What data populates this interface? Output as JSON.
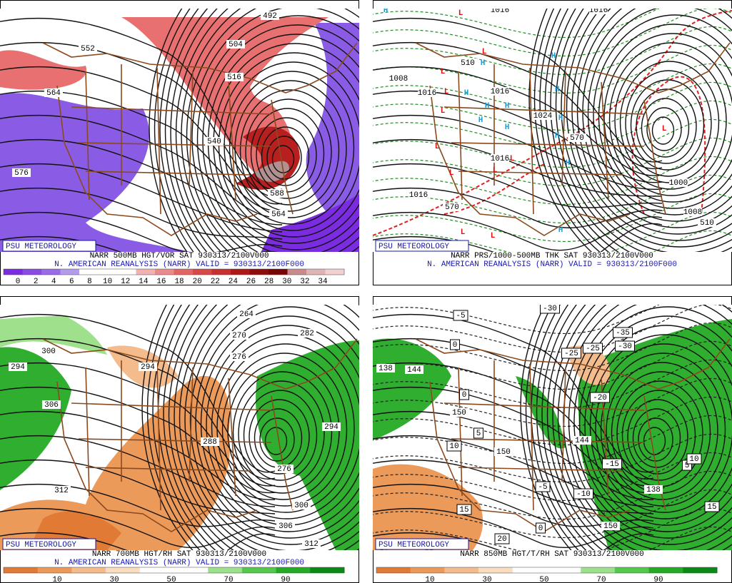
{
  "panels": [
    {
      "caption": [
        "NARR 500MB HGT/VOR SAT 930313/2100V000",
        "N. AMERICAN REANALYSIS (NARR) VALID = 930313/2100F000"
      ],
      "badge": "PSU METEOROLOGY",
      "colorbar": {
        "labels": [
          "0",
          "2",
          "4",
          "6",
          "8",
          "10",
          "12",
          "14",
          "16",
          "18",
          "20",
          "22",
          "24",
          "26",
          "28",
          "30",
          "32",
          "34"
        ],
        "colors": [
          "#7b2be0",
          "#8a4ae4",
          "#9a6ae8",
          "#b49cec",
          "#ffffff",
          "#ffffff",
          "#ffffff",
          "#f2b0b0",
          "#ea8a8a",
          "#e26464",
          "#d84848",
          "#c83030",
          "#b01818",
          "#900c0c",
          "#780404",
          "#c88a8a",
          "#e0b4b4",
          "#f2d0d0"
        ]
      },
      "labels": [
        "492",
        "504",
        "516",
        "552",
        "564",
        "576",
        "588",
        "564",
        "540"
      ]
    },
    {
      "caption": [
        "NARR PRS/1000-500MB THK SAT 930313/2100V000",
        "N. AMERICAN REANALYSIS (NARR) VALID = 930313/2100F000"
      ],
      "badge": "PSU METEOROLOGY",
      "labels": [
        "1016",
        "1008",
        "1016",
        "1016",
        "1016",
        "1016",
        "1024",
        "1000",
        "1008",
        "510",
        "570",
        "570",
        "510",
        "1016"
      ],
      "centers": [
        "L",
        "L",
        "L",
        "L",
        "L",
        "L",
        "L",
        "L",
        "L",
        "L",
        "L",
        "L",
        "H",
        "H",
        "H",
        "H",
        "H",
        "H",
        "H",
        "H",
        "H",
        "H",
        "H",
        "H",
        "H"
      ]
    },
    {
      "caption": [
        "NARR 700MB HGT/RH SAT 930313/2100V000",
        "N. AMERICAN REANALYSIS (NARR) VALID = 930313/2100F000"
      ],
      "badge": "PSU METEOROLOGY",
      "colorbar": {
        "labels": [
          "10",
          "30",
          "50",
          "70",
          "90"
        ],
        "colors": [
          "#e07a34",
          "#ec9a5a",
          "#f4bc8c",
          "#fadcc0",
          "#ffffff",
          "#ffffff",
          "#9ce08c",
          "#54c84a",
          "#24aa24",
          "#0a8a14"
        ]
      },
      "labels": [
        "264",
        "270",
        "276",
        "282",
        "300",
        "294",
        "294",
        "306",
        "288",
        "312",
        "306",
        "312",
        "294",
        "276",
        "300"
      ]
    },
    {
      "caption": [
        "NARR 850MB HGT/T/RH SAT 930313/2100V000"
      ],
      "badge": "PSU METEOROLOGY",
      "colorbar": {
        "labels": [
          "10",
          "30",
          "50",
          "70",
          "90"
        ],
        "colors": [
          "#e07a34",
          "#ec9a5a",
          "#f4bc8c",
          "#fadcc0",
          "#ffffff",
          "#ffffff",
          "#9ce08c",
          "#54c84a",
          "#24aa24",
          "#0a8a14"
        ]
      },
      "labels": [
        "138",
        "144",
        "150",
        "150",
        "144",
        "150",
        "138"
      ],
      "boxed_labels": [
        "-5",
        "-30",
        "-35",
        "-30",
        "-25",
        "-25",
        "-20",
        "0",
        "0",
        "5",
        "10",
        "-5",
        "-15",
        "-10",
        "15",
        "20",
        "5",
        "10",
        "15",
        "0"
      ]
    }
  ]
}
